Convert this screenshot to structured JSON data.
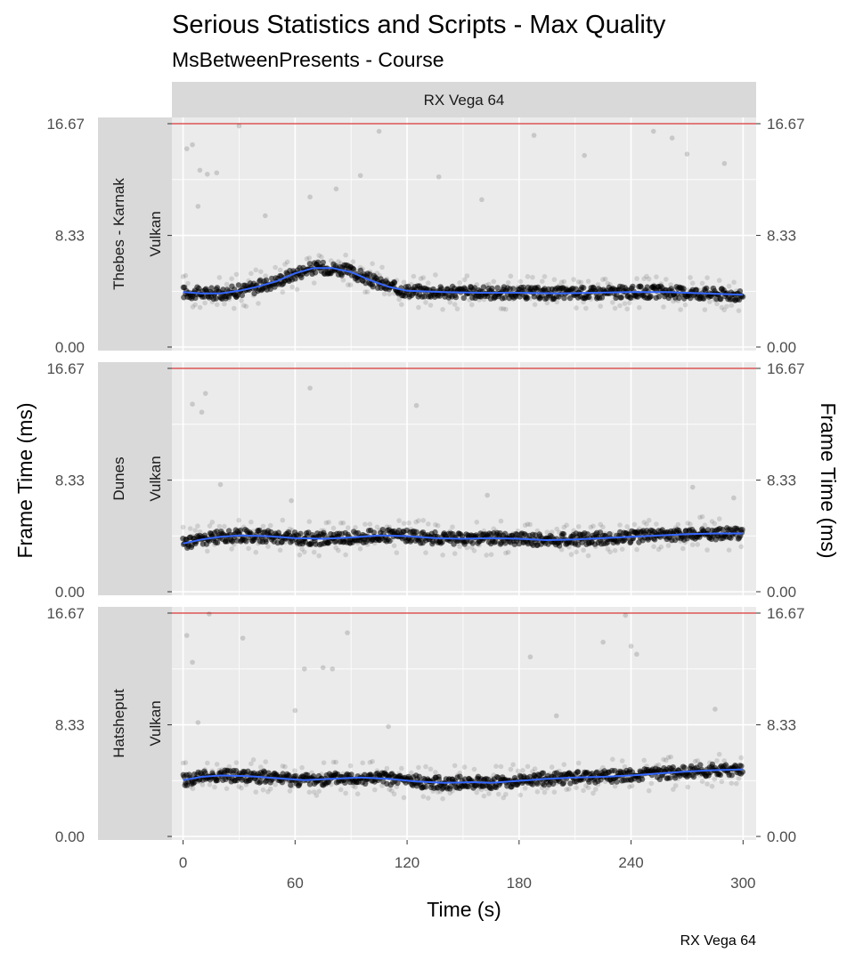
{
  "chart_data": {
    "type": "scatter",
    "title": "Serious Statistics and Scripts - Max Quality",
    "subtitle": "MsBetweenPresents - Course",
    "caption": "RX Vega 64",
    "column_strip": "RX Vega 64",
    "xlabel": "Time (s)",
    "ylabel": "Frame Time (ms)",
    "ylabel_right": "Frame Time (ms)",
    "xlim": [
      -6,
      307
    ],
    "ylim": [
      0,
      16.67
    ],
    "x_ticks_top": [
      "0",
      "120",
      "240"
    ],
    "x_ticks_bottom": [
      "60",
      "180",
      "300"
    ],
    "x_tick_values_top": [
      0,
      120,
      240
    ],
    "x_tick_values_bottom": [
      60,
      180,
      300
    ],
    "y_ticks": [
      "0.00",
      "8.33",
      "16.67"
    ],
    "y_tick_values": [
      0,
      8.33,
      16.67
    ],
    "reference_line": 16.67,
    "grid": true,
    "colors": {
      "panel": "#ebebeb",
      "strip": "#d9d9d9",
      "grid": "#ffffff",
      "points": "#000000",
      "smooth": "#3366ff",
      "reference": "#cc0000"
    },
    "panels": [
      {
        "location": "Thebes - Karnak",
        "api": "Vulkan",
        "smooth": [
          {
            "x": 0,
            "y": 4.1
          },
          {
            "x": 10,
            "y": 4.0
          },
          {
            "x": 20,
            "y": 4.0
          },
          {
            "x": 30,
            "y": 4.2
          },
          {
            "x": 40,
            "y": 4.5
          },
          {
            "x": 50,
            "y": 4.9
          },
          {
            "x": 60,
            "y": 5.5
          },
          {
            "x": 70,
            "y": 5.9
          },
          {
            "x": 80,
            "y": 5.9
          },
          {
            "x": 90,
            "y": 5.6
          },
          {
            "x": 100,
            "y": 5.0
          },
          {
            "x": 110,
            "y": 4.5
          },
          {
            "x": 120,
            "y": 4.2
          },
          {
            "x": 140,
            "y": 4.1
          },
          {
            "x": 160,
            "y": 4.05
          },
          {
            "x": 180,
            "y": 4.05
          },
          {
            "x": 200,
            "y": 4.0
          },
          {
            "x": 220,
            "y": 4.05
          },
          {
            "x": 240,
            "y": 4.1
          },
          {
            "x": 260,
            "y": 4.1
          },
          {
            "x": 280,
            "y": 4.0
          },
          {
            "x": 300,
            "y": 3.9
          }
        ],
        "outliers": [
          {
            "x": 2,
            "y": 14.8
          },
          {
            "x": 5,
            "y": 15.1
          },
          {
            "x": 9,
            "y": 13.2
          },
          {
            "x": 13,
            "y": 12.9
          },
          {
            "x": 18,
            "y": 13.0
          },
          {
            "x": 30,
            "y": 16.5
          },
          {
            "x": 68,
            "y": 11.2
          },
          {
            "x": 82,
            "y": 11.8
          },
          {
            "x": 95,
            "y": 12.8
          },
          {
            "x": 105,
            "y": 16.1
          },
          {
            "x": 137,
            "y": 12.7
          },
          {
            "x": 188,
            "y": 15.8
          },
          {
            "x": 215,
            "y": 14.3
          },
          {
            "x": 252,
            "y": 16.1
          },
          {
            "x": 262,
            "y": 15.6
          },
          {
            "x": 270,
            "y": 14.4
          },
          {
            "x": 290,
            "y": 13.7
          },
          {
            "x": 8,
            "y": 10.5
          },
          {
            "x": 44,
            "y": 9.8
          },
          {
            "x": 160,
            "y": 11.0
          }
        ]
      },
      {
        "location": "Dunes",
        "api": "Vulkan",
        "smooth": [
          {
            "x": 0,
            "y": 3.6
          },
          {
            "x": 10,
            "y": 3.9
          },
          {
            "x": 20,
            "y": 4.1
          },
          {
            "x": 30,
            "y": 4.2
          },
          {
            "x": 45,
            "y": 4.15
          },
          {
            "x": 60,
            "y": 4.0
          },
          {
            "x": 75,
            "y": 3.95
          },
          {
            "x": 90,
            "y": 4.05
          },
          {
            "x": 105,
            "y": 4.2
          },
          {
            "x": 120,
            "y": 4.15
          },
          {
            "x": 135,
            "y": 4.0
          },
          {
            "x": 150,
            "y": 3.95
          },
          {
            "x": 165,
            "y": 4.0
          },
          {
            "x": 180,
            "y": 3.95
          },
          {
            "x": 195,
            "y": 3.85
          },
          {
            "x": 210,
            "y": 3.9
          },
          {
            "x": 225,
            "y": 4.0
          },
          {
            "x": 240,
            "y": 4.1
          },
          {
            "x": 255,
            "y": 4.2
          },
          {
            "x": 270,
            "y": 4.3
          },
          {
            "x": 285,
            "y": 4.35
          },
          {
            "x": 300,
            "y": 4.35
          }
        ],
        "outliers": [
          {
            "x": 5,
            "y": 14.0
          },
          {
            "x": 10,
            "y": 13.4
          },
          {
            "x": 12,
            "y": 14.8
          },
          {
            "x": 68,
            "y": 15.2
          },
          {
            "x": 125,
            "y": 13.9
          },
          {
            "x": 20,
            "y": 8.0
          },
          {
            "x": 58,
            "y": 6.8
          },
          {
            "x": 163,
            "y": 7.2
          },
          {
            "x": 273,
            "y": 7.8
          },
          {
            "x": 295,
            "y": 7.0
          }
        ]
      },
      {
        "location": "Hatsheput",
        "api": "Vulkan",
        "smooth": [
          {
            "x": 0,
            "y": 4.2
          },
          {
            "x": 10,
            "y": 4.45
          },
          {
            "x": 20,
            "y": 4.55
          },
          {
            "x": 35,
            "y": 4.5
          },
          {
            "x": 50,
            "y": 4.35
          },
          {
            "x": 65,
            "y": 4.2
          },
          {
            "x": 80,
            "y": 4.3
          },
          {
            "x": 95,
            "y": 4.4
          },
          {
            "x": 110,
            "y": 4.3
          },
          {
            "x": 125,
            "y": 4.1
          },
          {
            "x": 140,
            "y": 4.0
          },
          {
            "x": 155,
            "y": 4.05
          },
          {
            "x": 165,
            "y": 4.0
          },
          {
            "x": 180,
            "y": 4.15
          },
          {
            "x": 195,
            "y": 4.3
          },
          {
            "x": 210,
            "y": 4.4
          },
          {
            "x": 225,
            "y": 4.45
          },
          {
            "x": 240,
            "y": 4.55
          },
          {
            "x": 255,
            "y": 4.7
          },
          {
            "x": 270,
            "y": 4.85
          },
          {
            "x": 285,
            "y": 4.95
          },
          {
            "x": 300,
            "y": 5.0
          }
        ],
        "outliers": [
          {
            "x": 2,
            "y": 15.0
          },
          {
            "x": 5,
            "y": 13.0
          },
          {
            "x": 14,
            "y": 16.6
          },
          {
            "x": 32,
            "y": 14.8
          },
          {
            "x": 65,
            "y": 12.5
          },
          {
            "x": 75,
            "y": 12.6
          },
          {
            "x": 80,
            "y": 12.5
          },
          {
            "x": 88,
            "y": 15.2
          },
          {
            "x": 186,
            "y": 13.4
          },
          {
            "x": 225,
            "y": 14.5
          },
          {
            "x": 237,
            "y": 16.5
          },
          {
            "x": 243,
            "y": 13.6
          },
          {
            "x": 240,
            "y": 14.2
          },
          {
            "x": 8,
            "y": 8.5
          },
          {
            "x": 60,
            "y": 9.4
          },
          {
            "x": 110,
            "y": 8.2
          },
          {
            "x": 200,
            "y": 9.0
          },
          {
            "x": 285,
            "y": 9.5
          }
        ]
      }
    ]
  }
}
